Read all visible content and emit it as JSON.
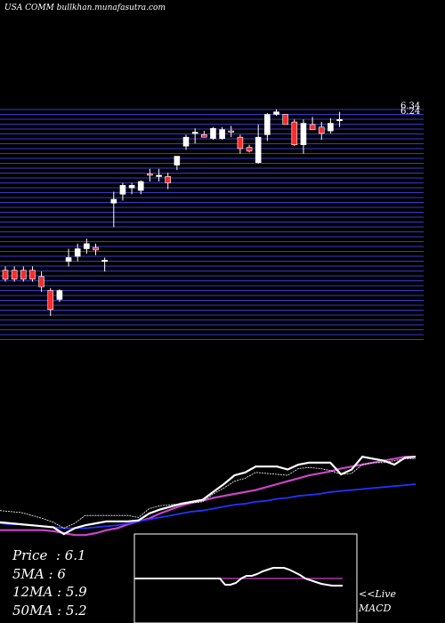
{
  "header": {
    "text": "USA COMM bullkhan.munafasutra.com"
  },
  "stats": {
    "price_label": "Price",
    "price_value": "6.1",
    "ma5_label": "5MA",
    "ma5_value": "6",
    "ma12_label": "12MA",
    "ma12_value": "5.9",
    "ma50_label": "50MA",
    "ma50_value": "5.2"
  },
  "live_label": "<<Live",
  "macd_label": "MACD",
  "colors": {
    "grid_line": "#3a3acc",
    "up_candle": "#ffffff",
    "down_candle": "#ff2a2a",
    "ma_fast": "#ffffff",
    "ma_mid": "#2233ff",
    "ma_slow": "#cc44cc",
    "macd_box": "#ffffff",
    "macd_signal": "#cc44cc"
  },
  "chart_data": [
    {
      "type": "candlestick",
      "title": "",
      "ylim": [
        4.5,
        6.34
      ],
      "price_labels": [
        "6.34",
        "6.24"
      ],
      "candles": [
        {
          "o": 5.05,
          "h": 5.08,
          "l": 4.96,
          "c": 4.98
        },
        {
          "o": 5.05,
          "h": 5.08,
          "l": 4.96,
          "c": 4.98
        },
        {
          "o": 5.05,
          "h": 5.08,
          "l": 4.96,
          "c": 4.98
        },
        {
          "o": 5.05,
          "h": 5.08,
          "l": 4.96,
          "c": 4.98
        },
        {
          "o": 5.0,
          "h": 5.04,
          "l": 4.88,
          "c": 4.92
        },
        {
          "o": 4.89,
          "h": 4.91,
          "l": 4.69,
          "c": 4.74
        },
        {
          "o": 4.82,
          "h": 4.9,
          "l": 4.8,
          "c": 4.89
        },
        {
          "o": 5.12,
          "h": 5.22,
          "l": 5.08,
          "c": 5.15
        },
        {
          "o": 5.16,
          "h": 5.26,
          "l": 5.12,
          "c": 5.22
        },
        {
          "o": 5.22,
          "h": 5.3,
          "l": 5.18,
          "c": 5.26
        },
        {
          "o": 5.23,
          "h": 5.26,
          "l": 5.17,
          "c": 5.21
        },
        {
          "o": 5.13,
          "h": 5.15,
          "l": 5.04,
          "c": 5.13
        },
        {
          "o": 5.58,
          "h": 5.67,
          "l": 5.39,
          "c": 5.61
        },
        {
          "o": 5.65,
          "h": 5.74,
          "l": 5.6,
          "c": 5.72
        },
        {
          "o": 5.7,
          "h": 5.74,
          "l": 5.65,
          "c": 5.72
        },
        {
          "o": 5.68,
          "h": 5.76,
          "l": 5.65,
          "c": 5.75
        },
        {
          "o": 5.81,
          "h": 5.85,
          "l": 5.75,
          "c": 5.8
        },
        {
          "o": 5.8,
          "h": 5.85,
          "l": 5.75,
          "c": 5.8
        },
        {
          "o": 5.79,
          "h": 5.82,
          "l": 5.69,
          "c": 5.74
        },
        {
          "o": 5.88,
          "h": 5.95,
          "l": 5.84,
          "c": 5.95
        },
        {
          "o": 6.03,
          "h": 6.12,
          "l": 6.0,
          "c": 6.1
        },
        {
          "o": 6.14,
          "h": 6.17,
          "l": 6.05,
          "c": 6.14
        },
        {
          "o": 6.12,
          "h": 6.15,
          "l": 6.1,
          "c": 6.1
        },
        {
          "o": 6.09,
          "h": 6.18,
          "l": 6.08,
          "c": 6.17
        },
        {
          "o": 6.09,
          "h": 6.18,
          "l": 6.08,
          "c": 6.16
        },
        {
          "o": 6.15,
          "h": 6.19,
          "l": 6.1,
          "c": 6.14
        },
        {
          "o": 6.1,
          "h": 6.12,
          "l": 5.97,
          "c": 6.01
        },
        {
          "o": 6.02,
          "h": 6.04,
          "l": 5.98,
          "c": 5.99
        },
        {
          "o": 5.9,
          "h": 6.2,
          "l": 5.89,
          "c": 6.1
        },
        {
          "o": 6.12,
          "h": 6.29,
          "l": 6.07,
          "c": 6.28
        },
        {
          "o": 6.28,
          "h": 6.32,
          "l": 6.27,
          "c": 6.3
        },
        {
          "o": 6.28,
          "h": 6.28,
          "l": 6.2,
          "c": 6.2
        },
        {
          "o": 6.22,
          "h": 6.24,
          "l": 6.03,
          "c": 6.04
        },
        {
          "o": 6.04,
          "h": 6.24,
          "l": 5.97,
          "c": 6.21
        },
        {
          "o": 6.2,
          "h": 6.26,
          "l": 6.16,
          "c": 6.16
        },
        {
          "o": 6.18,
          "h": 6.22,
          "l": 6.08,
          "c": 6.13
        },
        {
          "o": 6.15,
          "h": 6.25,
          "l": 6.13,
          "c": 6.21
        },
        {
          "o": 6.24,
          "h": 6.3,
          "l": 6.18,
          "c": 6.24
        }
      ]
    },
    {
      "type": "line",
      "title": "",
      "ylim": [
        0,
        100
      ],
      "series": [
        {
          "values": [
            13,
            13,
            13,
            13,
            13,
            12,
            10,
            8,
            8,
            10,
            13,
            15,
            19,
            22,
            25,
            30,
            34,
            38,
            41,
            43,
            46,
            48,
            50,
            52,
            54,
            57,
            60,
            63,
            66,
            69,
            71,
            73,
            76,
            78,
            80,
            82,
            84,
            86,
            88,
            88
          ]
        },
        {
          "values": [
            20,
            19,
            19,
            18,
            17,
            16,
            15,
            15,
            15,
            16,
            17,
            18,
            20,
            22,
            24,
            26,
            28,
            30,
            32,
            33,
            35,
            37,
            39,
            40,
            42,
            43,
            45,
            46,
            48,
            49,
            50,
            52,
            53,
            54,
            55,
            56,
            57,
            58,
            59,
            60
          ]
        },
        {
          "values": [
            33,
            32,
            31,
            28,
            25,
            21,
            15,
            20,
            28,
            28,
            28,
            28,
            28,
            26,
            35,
            38,
            39,
            40,
            41,
            42,
            50,
            56,
            63,
            66,
            72,
            71,
            70,
            69,
            76,
            77,
            76,
            74,
            70,
            71,
            80,
            82,
            82,
            84,
            86,
            86
          ]
        },
        {
          "values": [
            21,
            20,
            19,
            18,
            17,
            16,
            9,
            15,
            18,
            20,
            22,
            22,
            22,
            23,
            30,
            34,
            37,
            40,
            42,
            44,
            52,
            60,
            69,
            72,
            78,
            78,
            78,
            75,
            80,
            82,
            82,
            82,
            70,
            75,
            88,
            86,
            84,
            80,
            87,
            88
          ]
        }
      ]
    },
    {
      "type": "line",
      "title": "",
      "ylim": [
        -50,
        50
      ],
      "series": [
        {
          "values": [
            0,
            0,
            0,
            0,
            0,
            0,
            0,
            0,
            0,
            0,
            0,
            0,
            0,
            0,
            0,
            0,
            0,
            0,
            0,
            0,
            0,
            0,
            0,
            0,
            0,
            0,
            0,
            0,
            0,
            0,
            0,
            0,
            0,
            0,
            0,
            0,
            0,
            0,
            0,
            0
          ]
        },
        {
          "values": [
            0,
            0,
            0,
            0,
            0,
            0,
            0,
            0,
            0,
            0,
            0,
            0,
            0,
            0,
            0,
            0,
            0,
            -7,
            -7,
            -5,
            0,
            3,
            3,
            5,
            8,
            10,
            12,
            12,
            12,
            10,
            7,
            4,
            0,
            -2,
            -4,
            -6,
            -7,
            -8,
            -8,
            -8
          ]
        }
      ]
    }
  ]
}
